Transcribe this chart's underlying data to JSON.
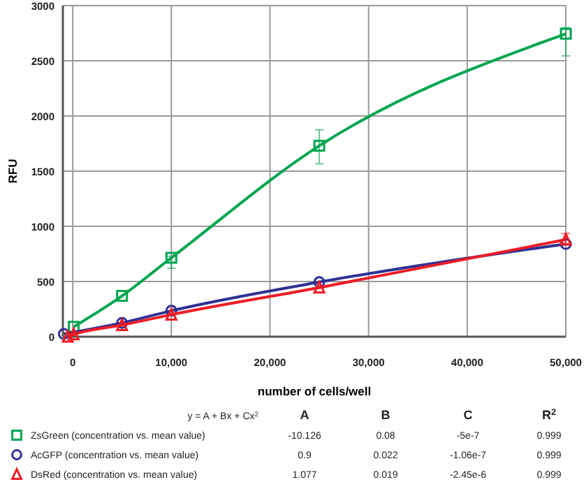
{
  "chart_data": {
    "type": "line",
    "xlabel": "number of cells/well",
    "ylabel": "RFU",
    "xlim": [
      -1000,
      50000
    ],
    "ylim": [
      0,
      3000
    ],
    "xticks": [
      0,
      {
        "value": 10000,
        "label": "10,000"
      },
      {
        "value": 20000,
        "label": "20,000"
      },
      {
        "value": 30000,
        "label": "30,000"
      },
      {
        "value": 40000,
        "label": "40,000"
      },
      {
        "value": 50000,
        "label": "50,000"
      }
    ],
    "yticks": [
      0,
      500,
      1000,
      1500,
      2000,
      2500,
      3000
    ],
    "grid": true,
    "legend": "bottom",
    "line_style": "solid",
    "series": [
      {
        "name": "ZsGreen (concentration vs. mean value)",
        "color": "#00a650",
        "marker": "square",
        "x": [
          100,
          5000,
          10000,
          25000,
          50000
        ],
        "values": [
          90,
          370,
          715,
          1730,
          2745
        ],
        "errors": [
          null,
          null,
          [
            620,
            730
          ],
          [
            1567,
            1875
          ],
          [
            2545,
            2800
          ]
        ]
      },
      {
        "name": "AcGFP (concentration vs. mean value)",
        "color": "#2e3192",
        "marker": "circle",
        "x": [
          -900,
          5000,
          10000,
          25000,
          50000
        ],
        "values": [
          25,
          125,
          235,
          495,
          840
        ]
      },
      {
        "name": "DsRed (concentration vs. mean value)",
        "color": "#ed1c24",
        "marker": "triangle",
        "x": [
          -500,
          100,
          5000,
          10000,
          25000,
          50000
        ],
        "values": [
          0,
          20,
          105,
          200,
          445,
          880
        ],
        "errors": [
          null,
          null,
          null,
          null,
          null,
          [
            840,
            935
          ]
        ]
      }
    ],
    "annotations": [
      "y = A + Bx + Cx$^{2}$",
      "A",
      "B",
      "C",
      "R$^{2}$",
      "-10.126",
      "0.08",
      "-5e-7",
      "0.999",
      "0.9",
      "0.022",
      "-1.06e-7",
      "0.999",
      "1.077",
      "0.019",
      "-2.45e-6",
      "0.999"
    ]
  }
}
